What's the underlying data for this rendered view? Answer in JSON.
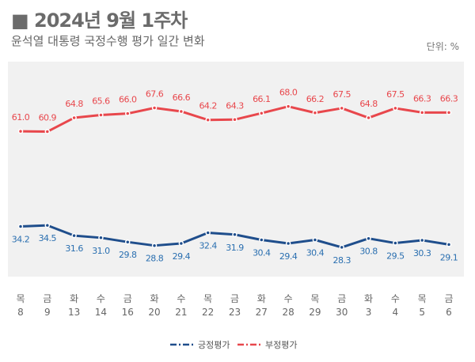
{
  "title": "■ 2024년 9월 1주차",
  "subtitle": "윤석열 대통령 국정수행 평가 일간 변화",
  "unit": "단위: %",
  "chart_data": {
    "type": "line",
    "title": "2024년 9월 1주차",
    "subtitle": "윤석열 대통령 국정수행 평가 일간 변화",
    "categories_day": [
      "목",
      "금",
      "화",
      "수",
      "금",
      "화",
      "수",
      "목",
      "금",
      "화",
      "수",
      "목",
      "금",
      "화",
      "수",
      "목",
      "금"
    ],
    "day_labels": [
      "목",
      "금",
      "화",
      "수",
      "금",
      "화",
      "수",
      "목",
      "금",
      "화",
      "수",
      "목",
      "금",
      "화",
      "수",
      "목",
      "금"
    ],
    "date_labels": [
      "8",
      "9",
      "13",
      "14",
      "16",
      "20",
      "21",
      "22",
      "23",
      "27",
      "28",
      "29",
      "30",
      "3",
      "4",
      "5",
      "6"
    ],
    "series": [
      {
        "name": "긍정평가",
        "color": "#1f4e8c",
        "label_color": "#2a6fb0",
        "values": [
          34.2,
          34.5,
          31.6,
          31.0,
          29.8,
          28.8,
          29.4,
          32.4,
          31.9,
          30.4,
          29.4,
          30.4,
          28.3,
          30.8,
          29.5,
          30.3,
          29.1
        ]
      },
      {
        "name": "부정평가",
        "color": "#e8474c",
        "label_color": "#e8474c",
        "values": [
          61.0,
          60.9,
          64.8,
          65.6,
          66.0,
          67.6,
          66.6,
          64.2,
          64.3,
          66.1,
          68.0,
          66.2,
          67.5,
          64.8,
          67.5,
          66.3,
          66.3
        ]
      }
    ],
    "legend_position": "bottom-right",
    "grid": false
  }
}
